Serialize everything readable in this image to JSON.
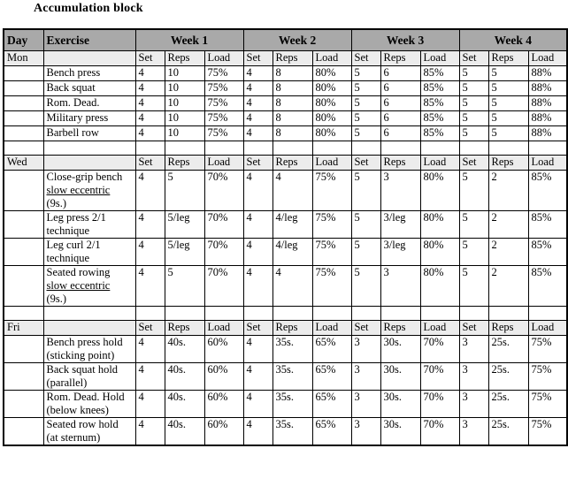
{
  "title": "Accumulation block",
  "accent_colors": {
    "header_bg": "#a9a9a9",
    "subheader_bg": "#ececec",
    "border": "#000000"
  },
  "table": {
    "day_header": "Day",
    "exercise_header": "Exercise",
    "week_headers": [
      "Week 1",
      "Week 2",
      "Week 3",
      "Week 4"
    ],
    "sub_columns": [
      "Set",
      "Reps",
      "Load"
    ],
    "sections": [
      {
        "day": "Mon",
        "rows": [
          {
            "exercise": [
              {
                "text": "Bench press",
                "underline": false
              }
            ],
            "weeks": [
              [
                "4",
                "10",
                "75%"
              ],
              [
                "4",
                "8",
                "80%"
              ],
              [
                "5",
                "6",
                "85%"
              ],
              [
                "5",
                "5",
                "88%"
              ]
            ]
          },
          {
            "exercise": [
              {
                "text": "Back squat",
                "underline": false
              }
            ],
            "weeks": [
              [
                "4",
                "10",
                "75%"
              ],
              [
                "4",
                "8",
                "80%"
              ],
              [
                "5",
                "6",
                "85%"
              ],
              [
                "5",
                "5",
                "88%"
              ]
            ]
          },
          {
            "exercise": [
              {
                "text": "Rom. Dead.",
                "underline": false
              }
            ],
            "weeks": [
              [
                "4",
                "10",
                "75%"
              ],
              [
                "4",
                "8",
                "80%"
              ],
              [
                "5",
                "6",
                "85%"
              ],
              [
                "5",
                "5",
                "88%"
              ]
            ]
          },
          {
            "exercise": [
              {
                "text": "Military press",
                "underline": false
              }
            ],
            "weeks": [
              [
                "4",
                "10",
                "75%"
              ],
              [
                "4",
                "8",
                "80%"
              ],
              [
                "5",
                "6",
                "85%"
              ],
              [
                "5",
                "5",
                "88%"
              ]
            ]
          },
          {
            "exercise": [
              {
                "text": "Barbell row",
                "underline": false
              }
            ],
            "weeks": [
              [
                "4",
                "10",
                "75%"
              ],
              [
                "4",
                "8",
                "80%"
              ],
              [
                "5",
                "6",
                "85%"
              ],
              [
                "5",
                "5",
                "88%"
              ]
            ]
          }
        ]
      },
      {
        "day": "Wed",
        "rows": [
          {
            "exercise": [
              {
                "text": "Close-grip bench ",
                "underline": false
              },
              {
                "text": "slow eccentric",
                "underline": true
              },
              {
                "text": " (9s.)",
                "underline": false
              }
            ],
            "weeks": [
              [
                "4",
                "5",
                "70%"
              ],
              [
                "4",
                "4",
                "75%"
              ],
              [
                "5",
                "3",
                "80%"
              ],
              [
                "5",
                "2",
                "85%"
              ]
            ]
          },
          {
            "exercise": [
              {
                "text": "Leg press 2/1 technique",
                "underline": false
              }
            ],
            "weeks": [
              [
                "4",
                "5/leg",
                "70%"
              ],
              [
                "4",
                "4/leg",
                "75%"
              ],
              [
                "5",
                "3/leg",
                "80%"
              ],
              [
                "5",
                "2",
                "85%"
              ]
            ]
          },
          {
            "exercise": [
              {
                "text": "Leg curl 2/1 technique",
                "underline": false
              }
            ],
            "weeks": [
              [
                "4",
                "5/leg",
                "70%"
              ],
              [
                "4",
                "4/leg",
                "75%"
              ],
              [
                "5",
                "3/leg",
                "80%"
              ],
              [
                "5",
                "2",
                "85%"
              ]
            ]
          },
          {
            "exercise": [
              {
                "text": "Seated rowing ",
                "underline": false
              },
              {
                "text": "slow eccentric",
                "underline": true
              },
              {
                "text": " (9s.)",
                "underline": false
              }
            ],
            "weeks": [
              [
                "4",
                "5",
                "70%"
              ],
              [
                "4",
                "4",
                "75%"
              ],
              [
                "5",
                "3",
                "80%"
              ],
              [
                "5",
                "2",
                "85%"
              ]
            ]
          }
        ]
      },
      {
        "day": "Fri",
        "rows": [
          {
            "exercise": [
              {
                "text": "Bench press hold (sticking point)",
                "underline": false
              }
            ],
            "weeks": [
              [
                "4",
                "40s.",
                "60%"
              ],
              [
                "4",
                "35s.",
                "65%"
              ],
              [
                "3",
                "30s.",
                "70%"
              ],
              [
                "3",
                "25s.",
                "75%"
              ]
            ]
          },
          {
            "exercise": [
              {
                "text": "Back squat hold (parallel)",
                "underline": false
              }
            ],
            "weeks": [
              [
                "4",
                "40s.",
                "60%"
              ],
              [
                "4",
                "35s.",
                "65%"
              ],
              [
                "3",
                "30s.",
                "70%"
              ],
              [
                "3",
                "25s.",
                "75%"
              ]
            ]
          },
          {
            "exercise": [
              {
                "text": "Rom. Dead. Hold (below knees)",
                "underline": false
              }
            ],
            "weeks": [
              [
                "4",
                "40s.",
                "60%"
              ],
              [
                "4",
                "35s.",
                "65%"
              ],
              [
                "3",
                "30s.",
                "70%"
              ],
              [
                "3",
                "25s.",
                "75%"
              ]
            ]
          },
          {
            "exercise": [
              {
                "text": "Seated row hold (at sternum)",
                "underline": false
              }
            ],
            "weeks": [
              [
                "4",
                "40s.",
                "60%"
              ],
              [
                "4",
                "35s.",
                "65%"
              ],
              [
                "3",
                "30s.",
                "70%"
              ],
              [
                "3",
                "25s.",
                "75%"
              ]
            ]
          }
        ]
      }
    ]
  }
}
